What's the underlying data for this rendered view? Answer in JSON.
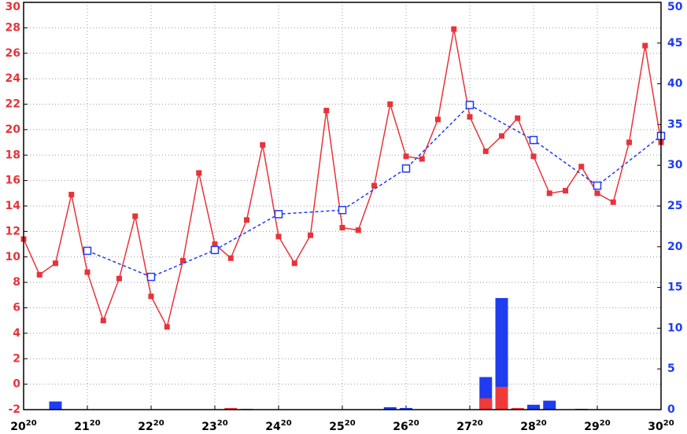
{
  "chart_data": {
    "type": "line",
    "xlim": [
      20,
      30
    ],
    "xticks": [
      {
        "value": 20,
        "label": "20",
        "sup": "20"
      },
      {
        "value": 21,
        "label": "21",
        "sup": "20"
      },
      {
        "value": 22,
        "label": "22",
        "sup": "20"
      },
      {
        "value": 23,
        "label": "23",
        "sup": "20"
      },
      {
        "value": 24,
        "label": "24",
        "sup": "20"
      },
      {
        "value": 25,
        "label": "25",
        "sup": "20"
      },
      {
        "value": 26,
        "label": "26",
        "sup": "20"
      },
      {
        "value": 27,
        "label": "27",
        "sup": "20"
      },
      {
        "value": 28,
        "label": "28",
        "sup": "20"
      },
      {
        "value": 29,
        "label": "29",
        "sup": "20"
      },
      {
        "value": 30,
        "label": "30",
        "sup": "20"
      }
    ],
    "ylim": [
      -2,
      30
    ],
    "yticks": [
      -2,
      0,
      2,
      4,
      6,
      8,
      10,
      12,
      14,
      16,
      18,
      20,
      22,
      24,
      26,
      28,
      30
    ],
    "y2lim": [
      0,
      50
    ],
    "y2ticks": [
      0,
      5,
      10,
      15,
      20,
      25,
      30,
      35,
      40,
      45,
      50
    ],
    "ycolor": "#e8333a",
    "y2color": "#1f3cf0",
    "grid": true,
    "series": [
      {
        "type": "bar",
        "axis": "y2",
        "color": "#1f3cf0",
        "x": [
          20.5,
          25.75,
          26.0,
          27.25,
          27.5,
          28.0,
          28.25,
          28.75
        ],
        "values": [
          1.0,
          0.3,
          0.2,
          4.0,
          13.7,
          0.6,
          1.1,
          0.1
        ]
      },
      {
        "type": "bar",
        "axis": "y2",
        "color": "#f03a3a",
        "x": [
          23.25,
          23.5,
          27.25,
          27.5,
          27.75
        ],
        "values": [
          0.2,
          0.1,
          1.4,
          2.8,
          0.2
        ]
      },
      {
        "type": "line",
        "axis": "y",
        "color": "#e8333a",
        "marker": "filled",
        "dash": false,
        "x": [
          20,
          20.25,
          20.5,
          20.75,
          21,
          21.25,
          21.5,
          21.75,
          22,
          22.25,
          22.5,
          22.75,
          23,
          23.25,
          23.5,
          23.75,
          24,
          24.25,
          24.5,
          24.75,
          25,
          25.25,
          25.5,
          25.75,
          26,
          26.25,
          26.5,
          26.75,
          27,
          27.25,
          27.5,
          27.75,
          28,
          28.25,
          28.5,
          28.75,
          29,
          29.25,
          29.5,
          29.75,
          30
        ],
        "values": [
          11.4,
          8.6,
          9.5,
          14.9,
          8.8,
          5.0,
          8.3,
          13.2,
          6.9,
          4.5,
          9.7,
          16.6,
          11.0,
          9.9,
          12.9,
          18.8,
          11.6,
          9.5,
          11.7,
          21.5,
          12.3,
          12.1,
          15.6,
          22.0,
          17.9,
          17.7,
          20.8,
          27.9,
          21.0,
          18.3,
          19.5,
          20.9,
          17.9,
          15.0,
          15.2,
          17.1,
          15.0,
          14.3,
          19.0,
          26.6,
          19.0
        ]
      },
      {
        "type": "line",
        "axis": "y2",
        "color": "#1f3cf0",
        "marker": "open",
        "dash": true,
        "x": [
          21,
          22,
          23,
          24,
          25,
          26,
          27,
          28,
          29,
          30
        ],
        "values": [
          19.5,
          16.3,
          19.6,
          24.0,
          24.5,
          29.6,
          37.4,
          33.1,
          27.5,
          33.6
        ]
      }
    ]
  }
}
